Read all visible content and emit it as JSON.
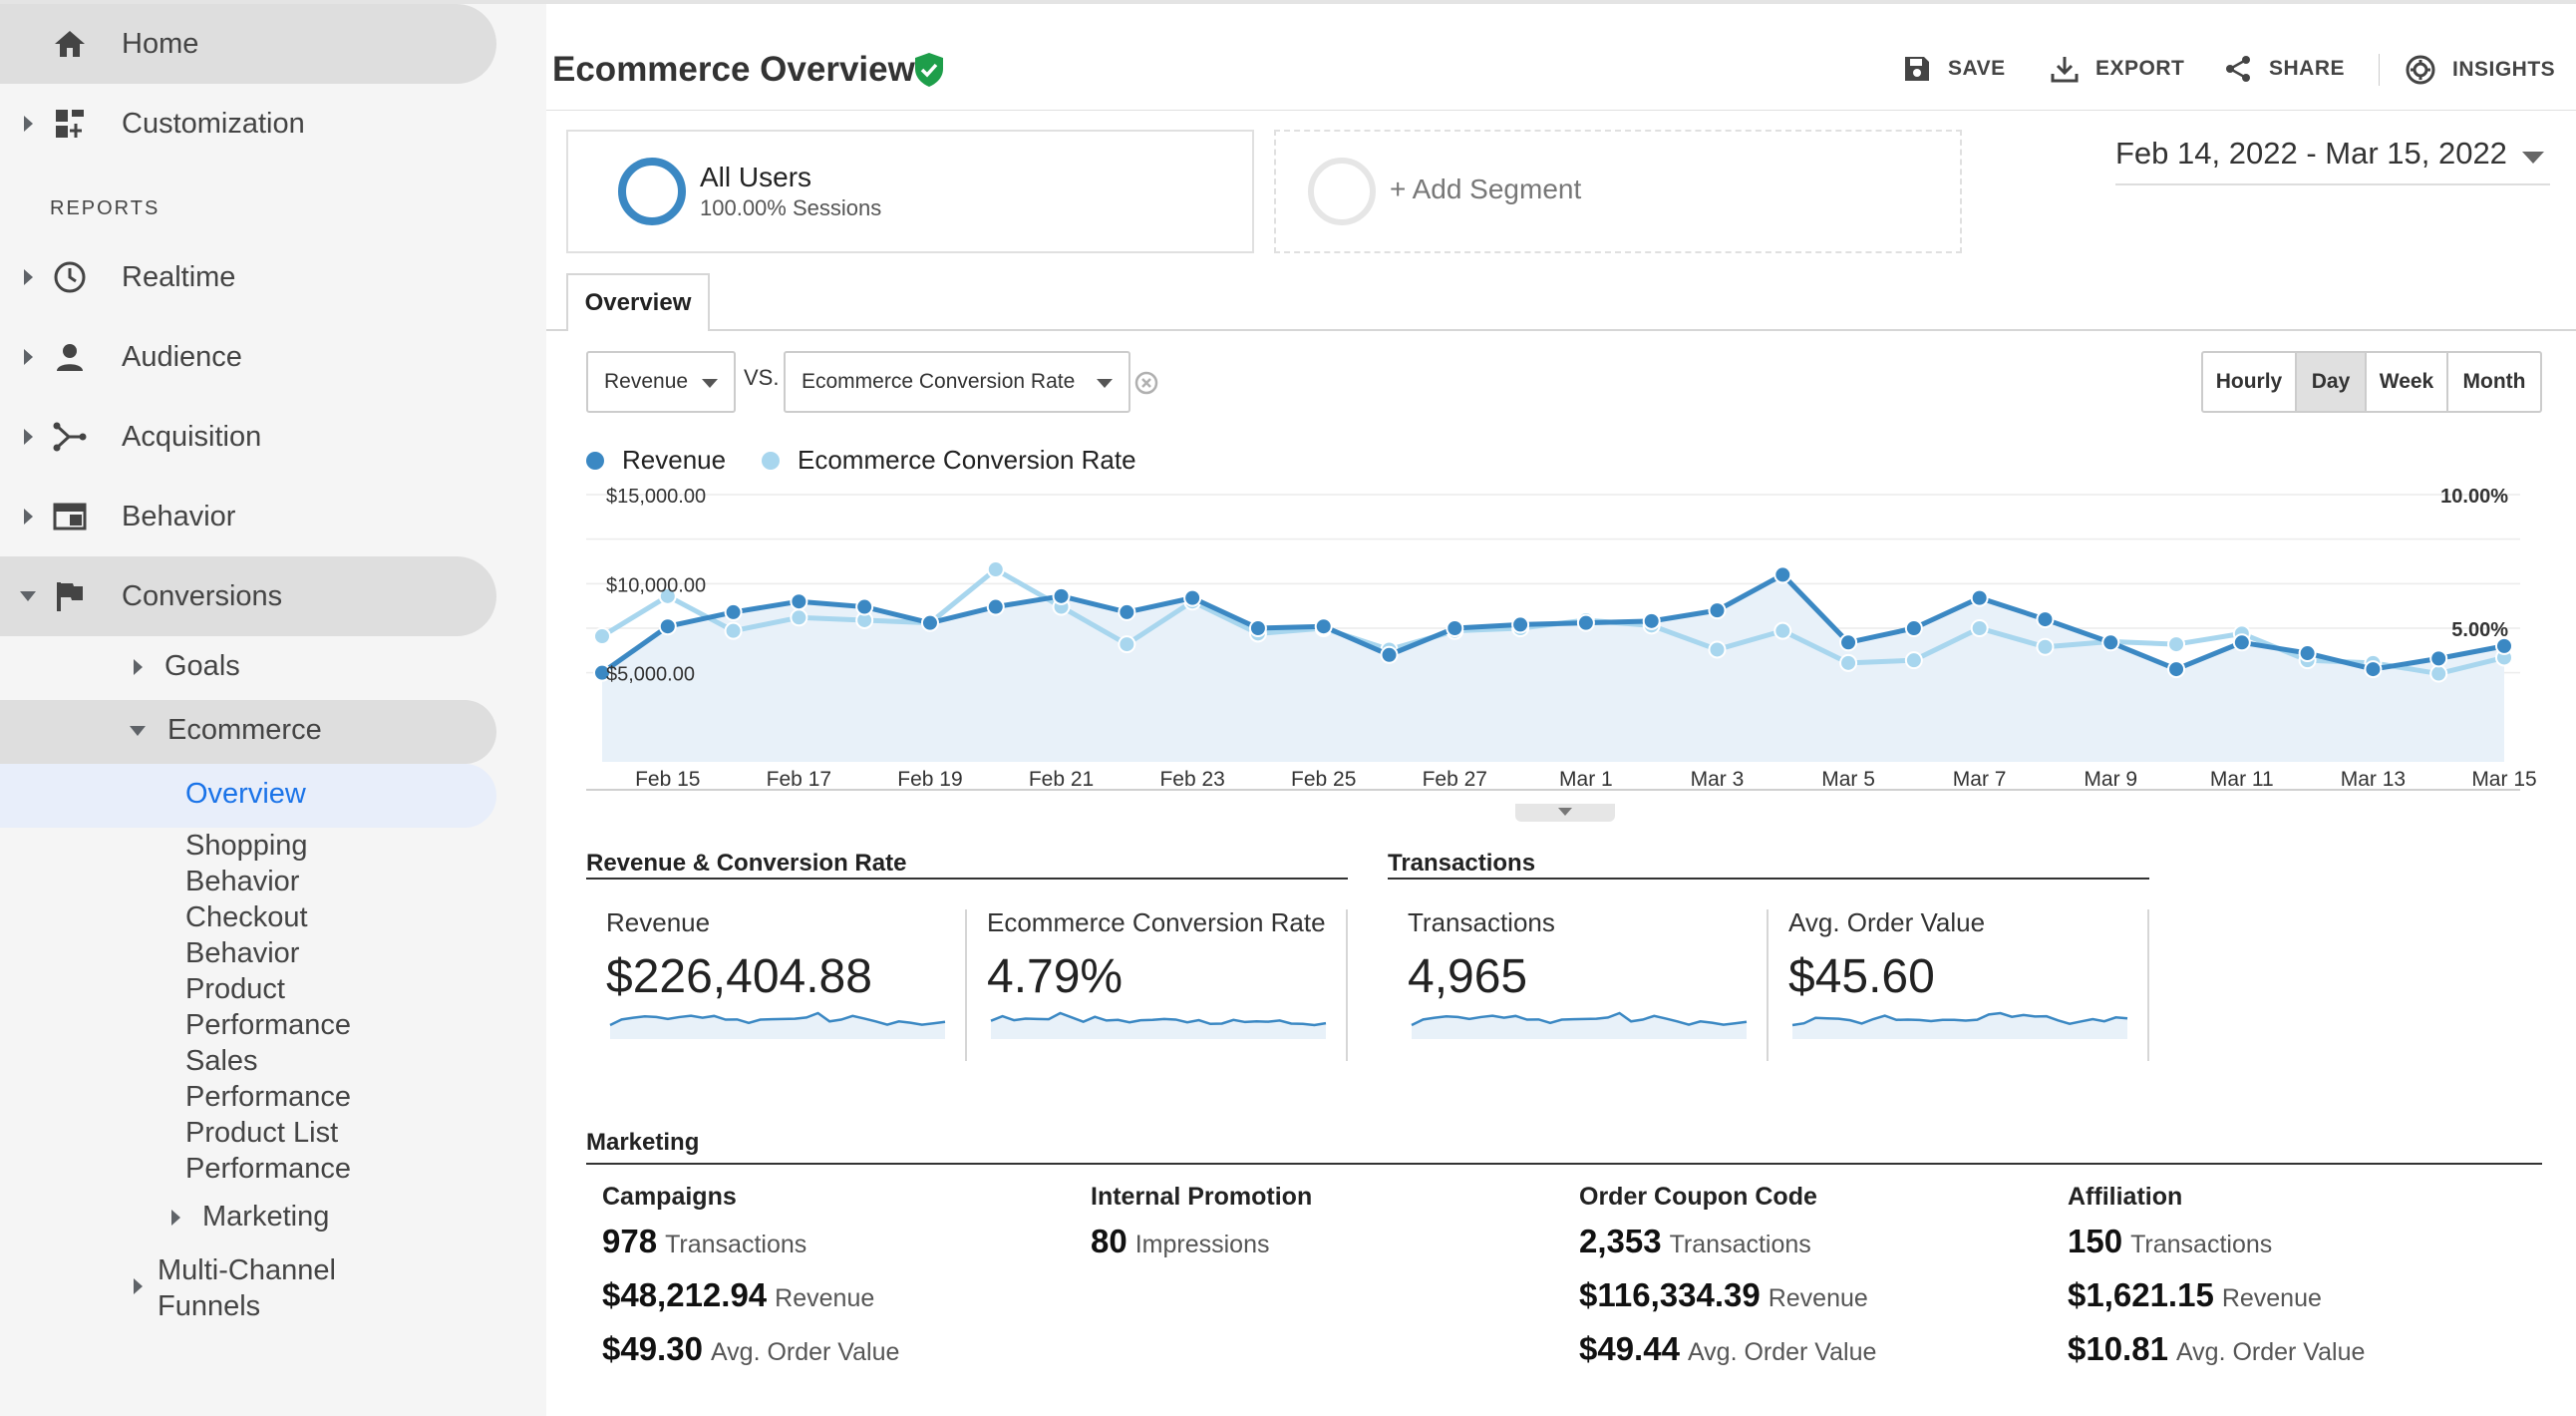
{
  "sidebar": {
    "home": "Home",
    "customization": "Customization",
    "reports_header": "REPORTS",
    "realtime": "Realtime",
    "audience": "Audience",
    "acquisition": "Acquisition",
    "behavior": "Behavior",
    "conversions": "Conversions",
    "goals": "Goals",
    "ecommerce": "Ecommerce",
    "overview": "Overview",
    "shopping_behavior": [
      "Shopping",
      "Behavior"
    ],
    "checkout_behavior": [
      "Checkout",
      "Behavior"
    ],
    "product_performance": [
      "Product",
      "Performance"
    ],
    "sales_performance": [
      "Sales",
      "Performance"
    ],
    "product_list_performance": [
      "Product List",
      "Performance"
    ],
    "marketing": "Marketing",
    "multi_channel": [
      "Multi-Channel",
      "Funnels"
    ]
  },
  "header": {
    "title": "Ecommerce Overview",
    "save": "SAVE",
    "export": "EXPORT",
    "share": "SHARE",
    "insights": "INSIGHTS"
  },
  "segments": {
    "all_users_name": "All Users",
    "all_users_sub": "100.00% Sessions",
    "add_segment": "+ Add Segment"
  },
  "date_range": "Feb 14, 2022 - Mar 15, 2022",
  "tabs": {
    "overview": "Overview"
  },
  "controls": {
    "metric1": "Revenue",
    "vs": "VS.",
    "metric2": "Ecommerce Conversion Rate",
    "periods": [
      "Hourly",
      "Day",
      "Week",
      "Month"
    ],
    "active_period": "Day"
  },
  "colors": {
    "revenue": "#3b88c3",
    "conversion": "#a8d6ee",
    "verified": "#1e9e4a"
  },
  "chart_data": {
    "type": "line",
    "x": [
      "Feb 14",
      "Feb 15",
      "Feb 16",
      "Feb 17",
      "Feb 18",
      "Feb 19",
      "Feb 20",
      "Feb 21",
      "Feb 22",
      "Feb 23",
      "Feb 24",
      "Feb 25",
      "Feb 26",
      "Feb 27",
      "Feb 28",
      "Mar 1",
      "Mar 2",
      "Mar 3",
      "Mar 4",
      "Mar 5",
      "Mar 6",
      "Mar 7",
      "Mar 8",
      "Mar 9",
      "Mar 10",
      "Mar 11",
      "Mar 12",
      "Mar 13",
      "Mar 14",
      "Mar 15"
    ],
    "x_tick_labels": [
      "Feb 15",
      "Feb 17",
      "Feb 19",
      "Feb 21",
      "Feb 23",
      "Feb 25",
      "Feb 27",
      "Mar 1",
      "Mar 3",
      "Mar 5",
      "Mar 7",
      "Mar 9",
      "Mar 11",
      "Mar 13",
      "Mar 15"
    ],
    "series": [
      {
        "name": "Revenue",
        "axis": "left",
        "values": [
          5000,
          7600,
          8400,
          9000,
          8700,
          7800,
          8700,
          9300,
          8400,
          9200,
          7500,
          7600,
          6000,
          7500,
          7700,
          7800,
          7900,
          8500,
          10500,
          6700,
          7500,
          9200,
          8000,
          6700,
          5200,
          6700,
          6100,
          5200,
          5800,
          6500
        ]
      },
      {
        "name": "Ecommerce Conversion Rate",
        "axis": "right",
        "values": [
          4.7,
          6.2,
          4.9,
          5.4,
          5.3,
          5.2,
          7.2,
          5.8,
          4.4,
          6.0,
          4.8,
          5.0,
          4.2,
          4.9,
          5.0,
          5.3,
          5.1,
          4.2,
          4.9,
          3.7,
          3.8,
          5.0,
          4.3,
          4.5,
          4.4,
          4.8,
          3.8,
          3.7,
          3.3,
          3.9
        ]
      }
    ],
    "y_left_ticks": [
      "$15,000.00",
      "$10,000.00",
      "$5,000.00"
    ],
    "y_left_range": [
      0,
      15000
    ],
    "y_right_ticks": [
      "10.00%",
      "5.00%"
    ],
    "y_right_range": [
      0,
      10
    ],
    "grid": true,
    "legend_position": "top-left",
    "legend": [
      "Revenue",
      "Ecommerce Conversion Rate"
    ]
  },
  "summary": {
    "rev_conv_title": "Revenue & Conversion Rate",
    "transactions_title": "Transactions",
    "kpis": [
      {
        "label": "Revenue",
        "value": "$226,404.88"
      },
      {
        "label": "Ecommerce Conversion Rate",
        "value": "4.79%"
      },
      {
        "label": "Transactions",
        "value": "4,965"
      },
      {
        "label": "Avg. Order Value",
        "value": "$45.60"
      }
    ]
  },
  "marketing": {
    "title": "Marketing",
    "columns": [
      {
        "title": "Campaigns",
        "rows": [
          {
            "value": "978",
            "unit": "Transactions"
          },
          {
            "value": "$48,212.94",
            "unit": "Revenue"
          },
          {
            "value": "$49.30",
            "unit": "Avg. Order Value"
          }
        ]
      },
      {
        "title": "Internal Promotion",
        "rows": [
          {
            "value": "80",
            "unit": "Impressions"
          }
        ]
      },
      {
        "title": "Order Coupon Code",
        "rows": [
          {
            "value": "2,353",
            "unit": "Transactions"
          },
          {
            "value": "$116,334.39",
            "unit": "Revenue"
          },
          {
            "value": "$49.44",
            "unit": "Avg. Order Value"
          }
        ]
      },
      {
        "title": "Affiliation",
        "rows": [
          {
            "value": "150",
            "unit": "Transactions"
          },
          {
            "value": "$1,621.15",
            "unit": "Revenue"
          },
          {
            "value": "$10.81",
            "unit": "Avg. Order Value"
          }
        ]
      }
    ]
  }
}
